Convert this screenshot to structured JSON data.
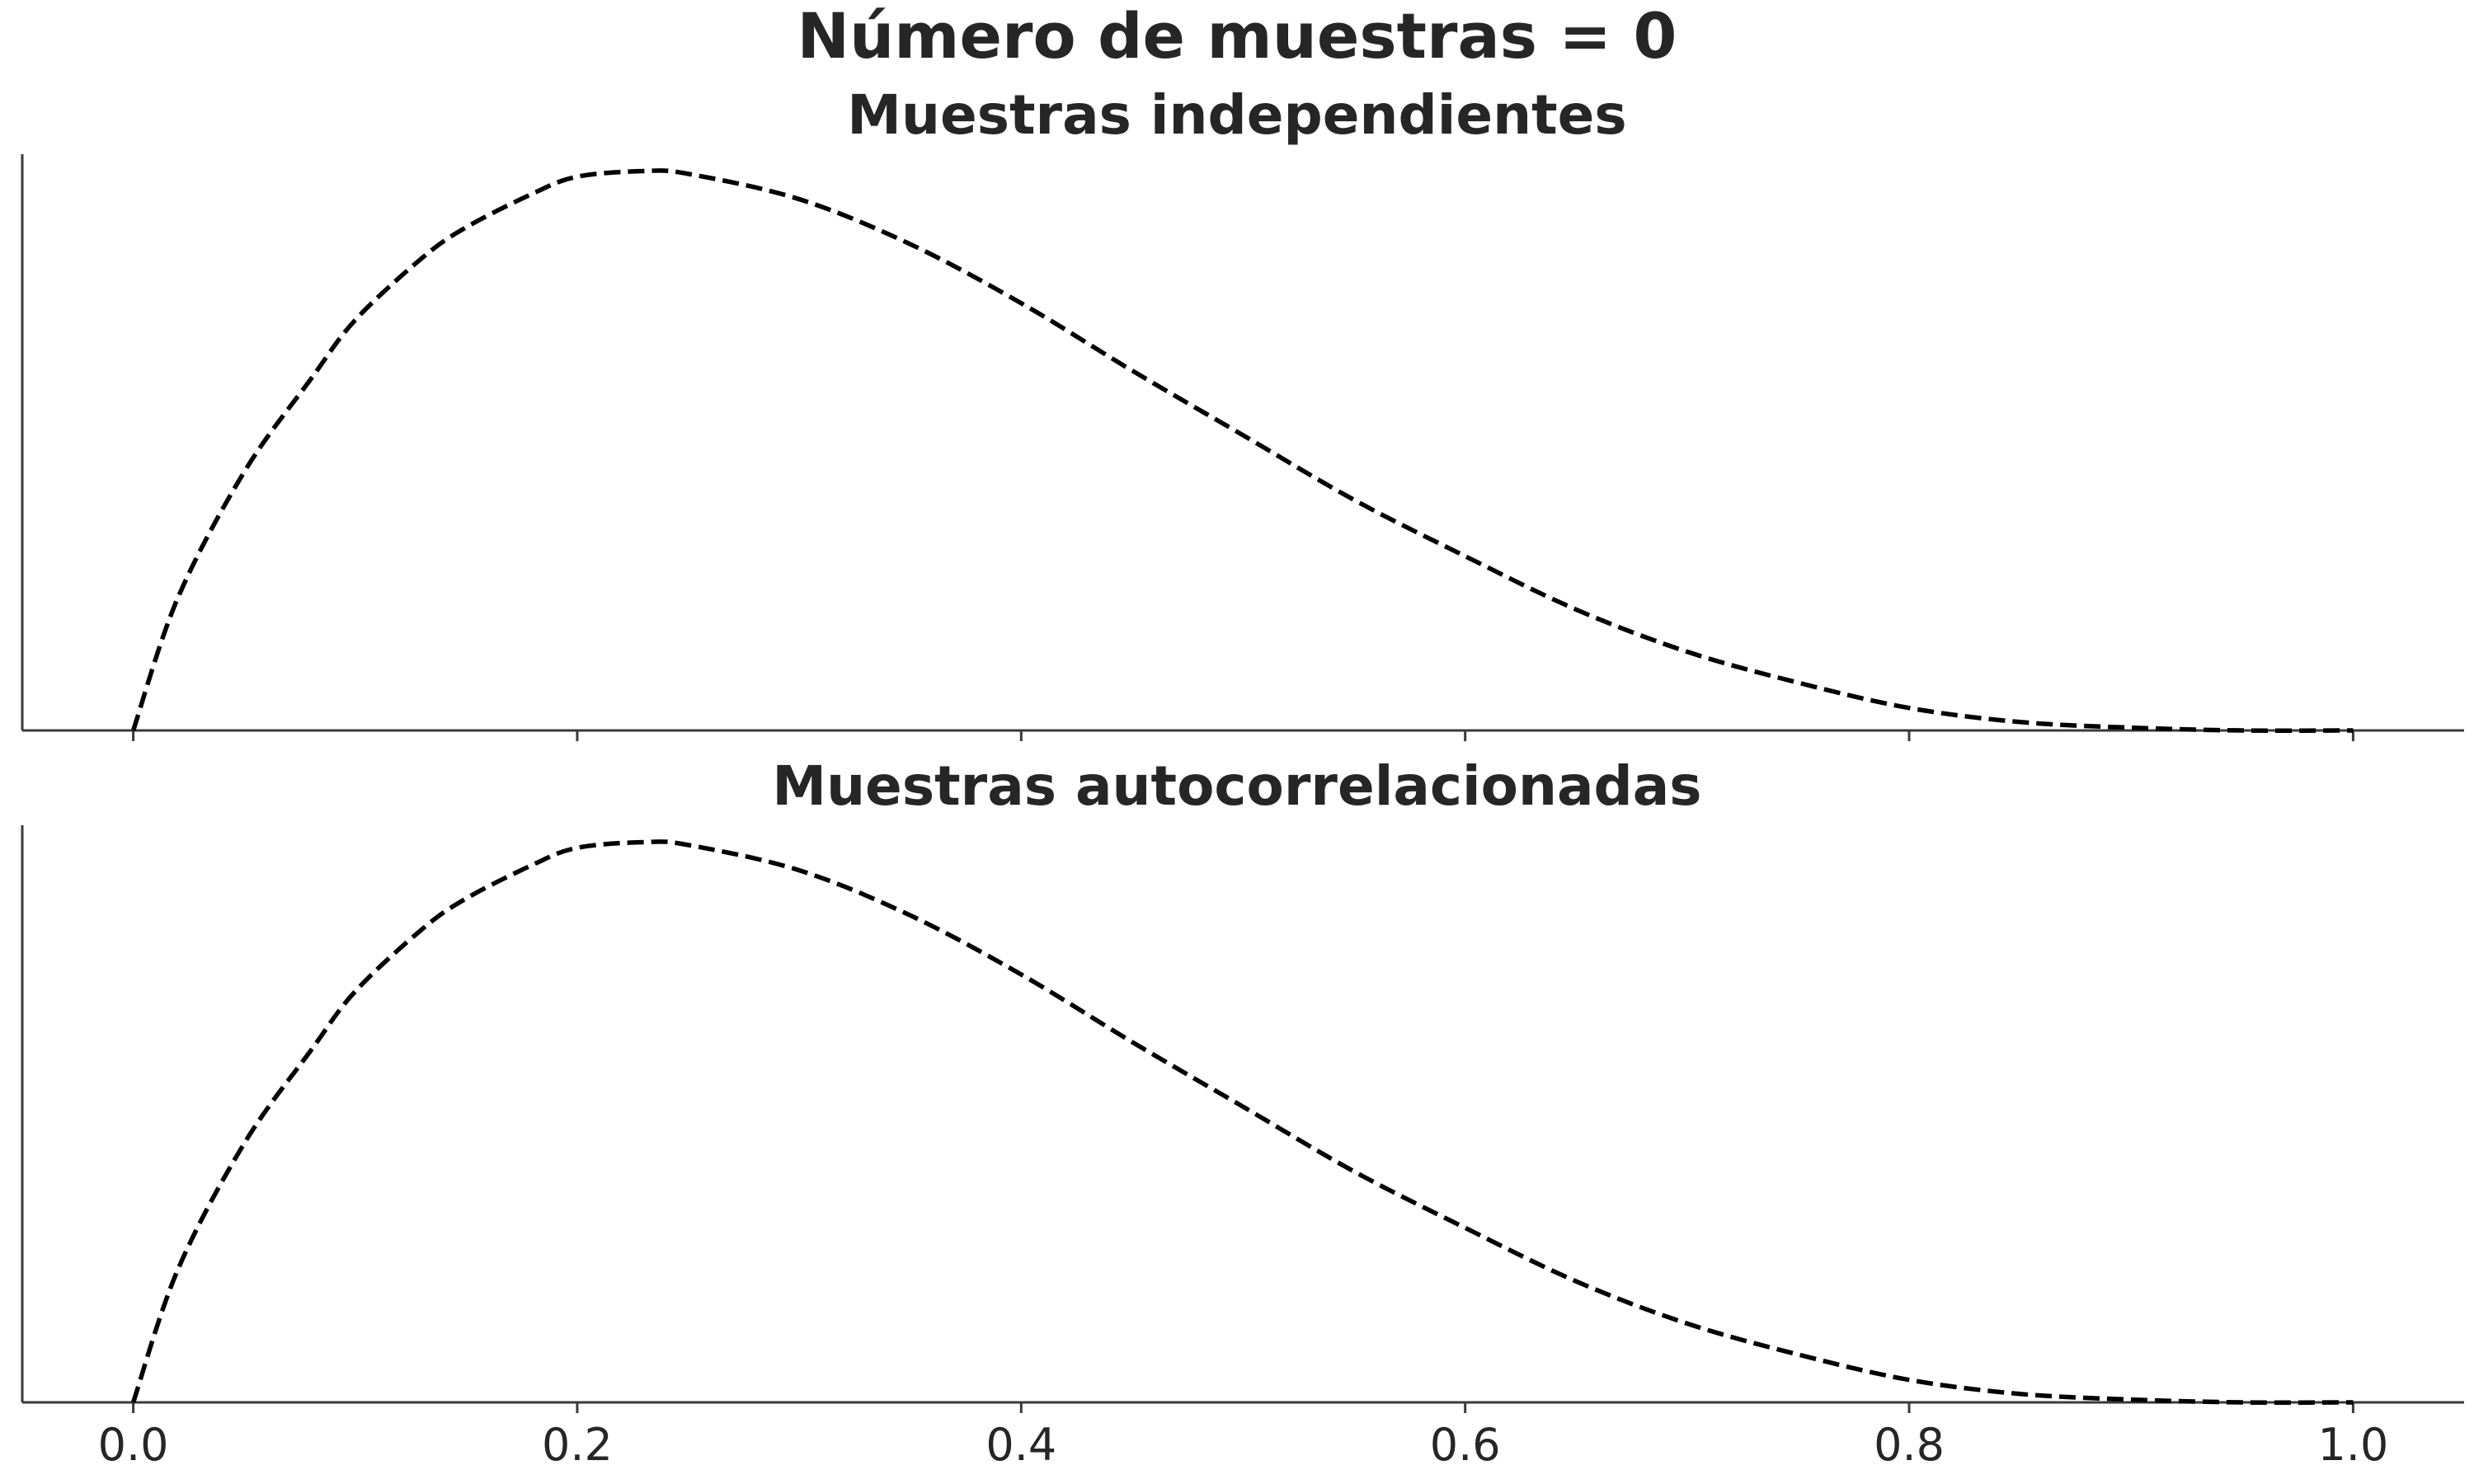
{
  "suptitle": "Número de muestras = 0",
  "chart_data": [
    {
      "type": "line",
      "title": "Muestras independientes",
      "xlabel": "",
      "ylabel": "",
      "xlim": [
        -0.05,
        1.05
      ],
      "ylim": [
        0,
        2.05
      ],
      "xticks": [
        0.0,
        0.2,
        0.4,
        0.6,
        0.8,
        1.0
      ],
      "xtick_labels": [],
      "grid": false,
      "series": [
        {
          "style": "dashed",
          "color": "#000000",
          "x": [
            0.0,
            0.02,
            0.05,
            0.08,
            0.1,
            0.13,
            0.15,
            0.18,
            0.2,
            0.23,
            0.25,
            0.3,
            0.35,
            0.4,
            0.45,
            0.5,
            0.55,
            0.6,
            0.65,
            0.7,
            0.75,
            0.8,
            0.85,
            0.9,
            0.95,
            1.0
          ],
          "y": [
            0.0,
            0.47,
            0.92,
            1.25,
            1.46,
            1.68,
            1.79,
            1.91,
            1.97,
            1.99,
            1.98,
            1.89,
            1.73,
            1.52,
            1.28,
            1.05,
            0.82,
            0.62,
            0.43,
            0.28,
            0.17,
            0.08,
            0.03,
            0.01,
            0.0,
            0.0
          ]
        }
      ]
    },
    {
      "type": "line",
      "title": "Muestras autocorrelacionadas",
      "xlabel": "",
      "ylabel": "",
      "xlim": [
        -0.05,
        1.05
      ],
      "ylim": [
        0,
        2.05
      ],
      "xticks": [
        0.0,
        0.2,
        0.4,
        0.6,
        0.8,
        1.0
      ],
      "xtick_labels": [
        "0.0",
        "0.2",
        "0.4",
        "0.6",
        "0.8",
        "1.0"
      ],
      "grid": false,
      "series": [
        {
          "style": "dashed",
          "color": "#000000",
          "x": [
            0.0,
            0.02,
            0.05,
            0.08,
            0.1,
            0.13,
            0.15,
            0.18,
            0.2,
            0.23,
            0.25,
            0.3,
            0.35,
            0.4,
            0.45,
            0.5,
            0.55,
            0.6,
            0.65,
            0.7,
            0.75,
            0.8,
            0.85,
            0.9,
            0.95,
            1.0
          ],
          "y": [
            0.0,
            0.47,
            0.92,
            1.25,
            1.46,
            1.68,
            1.79,
            1.91,
            1.97,
            1.99,
            1.98,
            1.89,
            1.73,
            1.52,
            1.28,
            1.05,
            0.82,
            0.62,
            0.43,
            0.28,
            0.17,
            0.08,
            0.03,
            0.01,
            0.0,
            0.0
          ]
        }
      ]
    }
  ]
}
